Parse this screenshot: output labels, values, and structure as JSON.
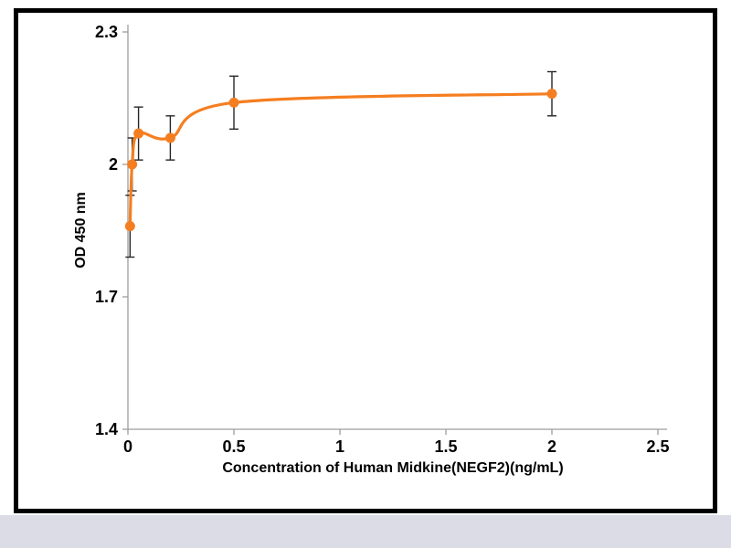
{
  "page": {
    "background": "#ffffff",
    "bottom_strip_color": "#dcdce6",
    "frame_border_color": "#000000",
    "frame_background": "#ffffff"
  },
  "chart_data": {
    "type": "line",
    "xlabel": "Concentration of Human Midkine(NEGF2)(ng/mL)",
    "ylabel": "OD 450 nm",
    "xlim": [
      0,
      2.5
    ],
    "ylim": [
      1.4,
      2.3
    ],
    "xticks": [
      0,
      0.5,
      1,
      1.5,
      2,
      2.5
    ],
    "xtick_labels": [
      "0",
      "0.5",
      "1",
      "1.5",
      "2",
      "2.5"
    ],
    "yticks": [
      1.4,
      1.7,
      2,
      2.3
    ],
    "ytick_labels": [
      "1.4",
      "1.7",
      "2",
      "2.3"
    ],
    "grid": false,
    "legend": false,
    "axis_color": "#9d9d9d",
    "tick_label_color": "#000000",
    "series": [
      {
        "color": "#f57e20",
        "error_bar_color": "#262626",
        "marker": "circle",
        "smooth": true,
        "points": [
          {
            "x": 0.01,
            "y": 1.86,
            "err": 0.07
          },
          {
            "x": 0.02,
            "y": 2.0,
            "err": 0.06
          },
          {
            "x": 0.05,
            "y": 2.07,
            "err": 0.06
          },
          {
            "x": 0.2,
            "y": 2.06,
            "err": 0.05
          },
          {
            "x": 0.5,
            "y": 2.14,
            "err": 0.06
          },
          {
            "x": 2.0,
            "y": 2.16,
            "err": 0.05
          }
        ]
      }
    ]
  }
}
